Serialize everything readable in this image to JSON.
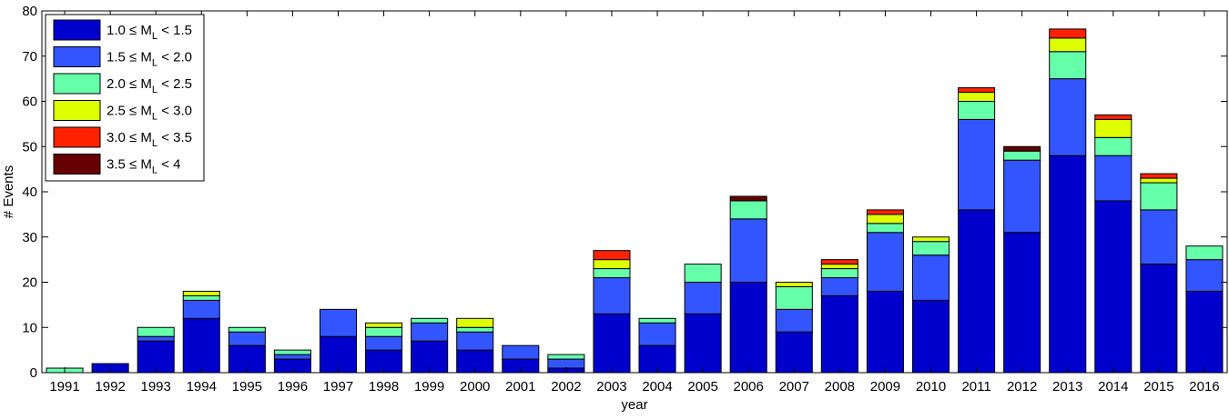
{
  "chart_data": {
    "type": "bar",
    "stacked": true,
    "xlabel": "year",
    "ylabel": "# Events",
    "ylim": [
      0,
      80
    ],
    "yticks": [
      0,
      10,
      20,
      30,
      40,
      50,
      60,
      70,
      80
    ],
    "grid": false,
    "legend_position": "top-left",
    "categories": [
      "1991",
      "1992",
      "1993",
      "1994",
      "1995",
      "1996",
      "1997",
      "1998",
      "1999",
      "2000",
      "2001",
      "2002",
      "2003",
      "2004",
      "2005",
      "2006",
      "2007",
      "2008",
      "2009",
      "2010",
      "2011",
      "2012",
      "2013",
      "2014",
      "2015",
      "2016"
    ],
    "series": [
      {
        "label": {
          "pre": "1.0 ≤ M",
          "sub": "L",
          "post": " < 1.5"
        },
        "color": "#0000cc",
        "values": [
          0,
          2,
          7,
          12,
          6,
          3,
          8,
          5,
          7,
          5,
          3,
          1,
          13,
          6,
          13,
          20,
          9,
          17,
          18,
          16,
          36,
          31,
          48,
          38,
          24,
          18
        ]
      },
      {
        "label": {
          "pre": "1.5 ≤ M",
          "sub": "L",
          "post": " < 2.0"
        },
        "color": "#3355ff",
        "values": [
          0,
          0,
          1,
          4,
          3,
          1,
          6,
          3,
          4,
          4,
          3,
          2,
          8,
          5,
          7,
          14,
          5,
          4,
          13,
          10,
          20,
          16,
          17,
          10,
          12,
          7
        ]
      },
      {
        "label": {
          "pre": "2.0 ≤ M",
          "sub": "L",
          "post": " < 2.5"
        },
        "color": "#66ffaa",
        "values": [
          1,
          0,
          2,
          1,
          1,
          1,
          0,
          2,
          1,
          1,
          0,
          1,
          2,
          1,
          4,
          4,
          5,
          2,
          2,
          3,
          4,
          2,
          6,
          4,
          6,
          3
        ]
      },
      {
        "label": {
          "pre": "2.5 ≤ M",
          "sub": "L",
          "post": " < 3.0"
        },
        "color": "#ddff00",
        "values": [
          0,
          0,
          0,
          1,
          0,
          0,
          0,
          1,
          0,
          2,
          0,
          0,
          2,
          0,
          0,
          0,
          1,
          1,
          2,
          1,
          2,
          0,
          3,
          4,
          1,
          0
        ]
      },
      {
        "label": {
          "pre": "3.0 ≤ M",
          "sub": "L",
          "post": " < 3.5"
        },
        "color": "#ff2200",
        "values": [
          0,
          0,
          0,
          0,
          0,
          0,
          0,
          0,
          0,
          0,
          0,
          0,
          2,
          0,
          0,
          0,
          0,
          1,
          1,
          0,
          1,
          0,
          2,
          1,
          1,
          0
        ]
      },
      {
        "label": {
          "pre": "3.5 ≤ M",
          "sub": "L",
          "post": " < 4"
        },
        "color": "#660000",
        "values": [
          0,
          0,
          0,
          0,
          0,
          0,
          0,
          0,
          0,
          0,
          0,
          0,
          0,
          0,
          0,
          1,
          0,
          0,
          0,
          0,
          0,
          1,
          0,
          0,
          0,
          0
        ]
      }
    ]
  }
}
